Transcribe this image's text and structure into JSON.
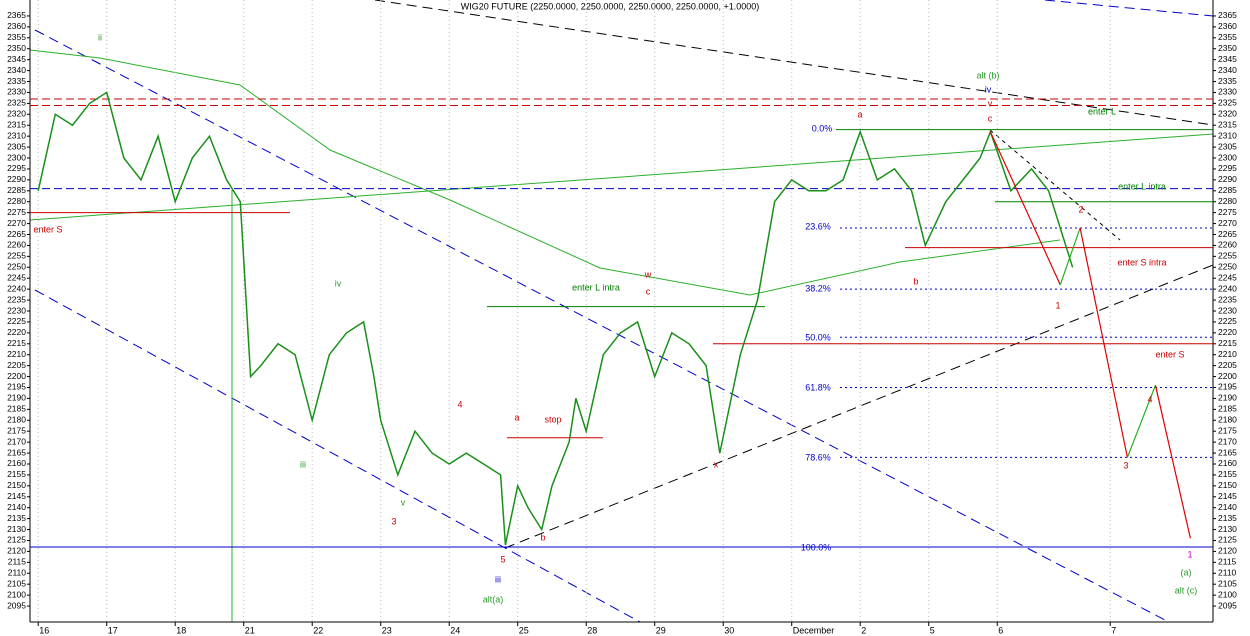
{
  "chart_data": {
    "type": "line",
    "title": "WIG20 FUTURE (2250.0000, 2250.0000, 2250.0000, 2250.0000, +1.0000)",
    "xlim": [
      -0.12,
      17.15
    ],
    "ylim": [
      2087.7,
      2372.3
    ],
    "xticks": [
      {
        "value": 0,
        "label": "16"
      },
      {
        "value": 1,
        "label": "17"
      },
      {
        "value": 2,
        "label": "18"
      },
      {
        "value": 3,
        "label": "21"
      },
      {
        "value": 4,
        "label": "22"
      },
      {
        "value": 5,
        "label": "23"
      },
      {
        "value": 6,
        "label": "24"
      },
      {
        "value": 7,
        "label": "25"
      },
      {
        "value": 8,
        "label": "28"
      },
      {
        "value": 9,
        "label": "29"
      },
      {
        "value": 10,
        "label": "30"
      },
      {
        "value": 11,
        "label": "December"
      },
      {
        "value": 12,
        "label": "2"
      },
      {
        "value": 13,
        "label": "5"
      },
      {
        "value": 14,
        "label": "6"
      },
      {
        "value": 15.65,
        "label": "7"
      }
    ],
    "yticks": [
      2095,
      2100,
      2105,
      2110,
      2115,
      2120,
      2125,
      2130,
      2135,
      2140,
      2145,
      2150,
      2155,
      2160,
      2165,
      2170,
      2175,
      2180,
      2185,
      2190,
      2195,
      2200,
      2205,
      2210,
      2215,
      2220,
      2225,
      2230,
      2235,
      2240,
      2245,
      2250,
      2255,
      2260,
      2265,
      2270,
      2275,
      2280,
      2285,
      2290,
      2295,
      2300,
      2305,
      2310,
      2315,
      2320,
      2325,
      2330,
      2335,
      2340,
      2345,
      2350,
      2355,
      2360,
      2365
    ],
    "grid": true,
    "series": [
      {
        "color": "#1a8f1a",
        "x": [
          0,
          0.25,
          0.5,
          0.75,
          1,
          1.25,
          1.5,
          1.75,
          2,
          2.25,
          2.5,
          2.75,
          2.95,
          3.1,
          3.25,
          3.5,
          3.75,
          4,
          4.25,
          4.5,
          4.75,
          4.9,
          5,
          5.25,
          5.5,
          5.75,
          6,
          6.25,
          6.5,
          6.75,
          6.82,
          7,
          7.15,
          7.35,
          7.5,
          7.75,
          7.85,
          8,
          8.25,
          8.5,
          8.75,
          9,
          9.25,
          9.5,
          9.75,
          9.95,
          10.25,
          10.5,
          10.75,
          11,
          11.25,
          11.5,
          11.75,
          12,
          12.25,
          12.5,
          12.75,
          12.95,
          13.25,
          13.5,
          13.75,
          13.9,
          14.2,
          14.5,
          14.75,
          14.95,
          15.1
        ],
        "values": [
          2285,
          2320,
          2315,
          2325,
          2330,
          2300,
          2290,
          2310,
          2280,
          2300,
          2310,
          2290,
          2280,
          2200,
          2205,
          2215,
          2210,
          2180,
          2210,
          2220,
          2225,
          2200,
          2180,
          2155,
          2175,
          2165,
          2160,
          2165,
          2160,
          2155,
          2123,
          2150,
          2140,
          2130,
          2150,
          2170,
          2190,
          2175,
          2210,
          2220,
          2225,
          2200,
          2220,
          2215,
          2205,
          2165,
          2210,
          2235,
          2280,
          2290,
          2285,
          2285,
          2290,
          2312,
          2290,
          2295,
          2285,
          2260,
          2280,
          2290,
          2300,
          2312,
          2285,
          2295,
          2285,
          2265,
          2250
        ]
      },
      {
        "segment_colors": [
          "#e00000",
          "#20b020",
          "#e00000",
          "#20b020",
          "#e00000"
        ],
        "x": [
          13.9,
          14.92,
          15.21,
          15.9,
          16.31,
          16.82
        ],
        "values": [
          2312,
          2242,
          2268,
          2163,
          2196,
          2126
        ]
      }
    ],
    "levels": [
      {
        "value": 2313,
        "color": "#008000",
        "style": "solid"
      },
      {
        "value": 2268,
        "color": "#0000cc",
        "style": "dashed"
      },
      {
        "value": 2240,
        "color": "#0000cc",
        "style": "dashed"
      },
      {
        "value": 2218,
        "color": "#0000cc",
        "style": "dashed"
      },
      {
        "value": 2195,
        "color": "#0000cc",
        "style": "dashed"
      },
      {
        "value": 2163,
        "color": "#0000cc",
        "style": "dashed"
      },
      {
        "value": 2122,
        "color": "#0000cc",
        "style": "solid"
      },
      {
        "value": 2286,
        "color": "#0000cc",
        "style": "dashed"
      },
      {
        "value": 2327,
        "color": "#cc0000",
        "style": "dashed"
      },
      {
        "value": 2324,
        "color": "#cc0000",
        "style": "dashed"
      },
      {
        "value": 2275,
        "color": "#cc0000",
        "style": "solid"
      },
      {
        "value": 2172,
        "color": "#cc0000",
        "style": "solid"
      },
      {
        "value": 2259,
        "color": "#cc0000",
        "style": "solid"
      },
      {
        "value": 2215,
        "color": "#cc0000",
        "style": "solid"
      },
      {
        "value": 2232,
        "color": "#008000",
        "style": "solid"
      },
      {
        "value": 2280,
        "color": "#008000",
        "style": "solid"
      }
    ],
    "annotations": [
      {
        "text": "ii",
        "color": "#2a9a2a"
      },
      {
        "text": "iii",
        "color": "#2a9a2a"
      },
      {
        "text": "iv",
        "color": "#2a9a2a"
      },
      {
        "text": "v",
        "color": "#2a9a2a"
      },
      {
        "text": "alt(a)",
        "color": "#2a9a2a"
      },
      {
        "text": "iii",
        "color": "#0000cc"
      },
      {
        "text": "5",
        "color": "#cc0000"
      },
      {
        "text": "3",
        "color": "#cc0000"
      },
      {
        "text": "4",
        "color": "#cc0000"
      },
      {
        "text": "a",
        "color": "#cc0000"
      },
      {
        "text": "b",
        "color": "#cc0000"
      },
      {
        "text": "stop",
        "color": "#cc0000"
      },
      {
        "text": "w",
        "color": "#cc0000"
      },
      {
        "text": "c",
        "color": "#cc0000"
      },
      {
        "text": "x",
        "color": "#cc0000"
      },
      {
        "text": "enter L intra",
        "color": "#008000"
      },
      {
        "text": "enter S",
        "color": "#cc0000"
      },
      {
        "text": "a",
        "color": "#cc0000"
      },
      {
        "text": "b",
        "color": "#cc0000"
      },
      {
        "text": "0.0%",
        "color": "#0000cc"
      },
      {
        "text": "23.6%",
        "color": "#0000cc"
      },
      {
        "text": "38.2%",
        "color": "#0000cc"
      },
      {
        "text": "50.0%",
        "color": "#0000cc"
      },
      {
        "text": "61.8%",
        "color": "#0000cc"
      },
      {
        "text": "78.6%",
        "color": "#0000cc"
      },
      {
        "text": "100.0%",
        "color": "#0000cc"
      },
      {
        "text": "alt (b)",
        "color": "#2a9a2a"
      },
      {
        "text": "iv",
        "color": "#0000cc"
      },
      {
        "text": "v",
        "color": "#cc0000"
      },
      {
        "text": "c",
        "color": "#cc0000"
      },
      {
        "text": "enter L",
        "color": "#008000"
      },
      {
        "text": "enter L intra",
        "color": "#008000"
      },
      {
        "text": "2",
        "color": "#cc0000"
      },
      {
        "text": "enter S intra",
        "color": "#cc0000"
      },
      {
        "text": "1",
        "color": "#cc0000"
      },
      {
        "text": "enter S",
        "color": "#cc0000"
      },
      {
        "text": "4",
        "color": "#cc0000"
      },
      {
        "text": "3",
        "color": "#cc0000"
      },
      {
        "text": "1",
        "color": "#cc00cc"
      },
      {
        "text": "(a)",
        "color": "#2a9a2a"
      },
      {
        "text": "alt (c)",
        "color": "#2a9a2a"
      }
    ]
  }
}
